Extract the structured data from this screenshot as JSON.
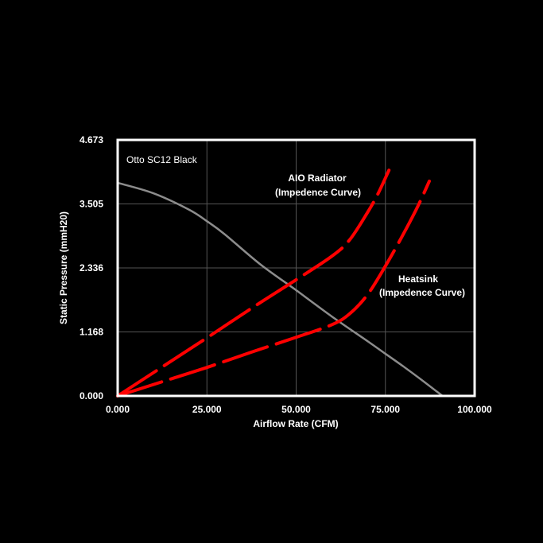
{
  "chart_data": {
    "type": "line",
    "title": "Otto SC12 Black",
    "xlabel": "Airflow Rate (CFM)",
    "ylabel": "Static Pressure (mmH20)",
    "xlim": [
      0,
      100
    ],
    "ylim": [
      0,
      4.673
    ],
    "x_ticks": [
      "0.000",
      "25.000",
      "50.000",
      "75.000",
      "100.000"
    ],
    "x_tick_values": [
      0,
      25,
      50,
      75,
      100
    ],
    "y_ticks": [
      "0.000",
      "1.168",
      "2.336",
      "3.505",
      "4.673"
    ],
    "y_tick_values": [
      0,
      1.168,
      2.336,
      3.505,
      4.673
    ],
    "grid": true,
    "series": [
      {
        "name": "Otto SC12 Black",
        "style": "solid",
        "color": "#8c8c8c",
        "x": [
          0,
          10,
          20,
          25,
          30,
          40,
          50,
          60,
          70,
          75,
          80,
          85,
          91
        ],
        "y": [
          3.89,
          3.7,
          3.4,
          3.19,
          2.95,
          2.4,
          1.93,
          1.45,
          1.0,
          0.77,
          0.54,
          0.3,
          0
        ]
      },
      {
        "name": "AIO Radiator (Impedence Curve)",
        "style": "dashed",
        "color": "#ff0000",
        "label_lines": [
          "AIO Radiator",
          "(Impedence Curve)"
        ],
        "x": [
          0,
          12.5,
          25,
          37.5,
          50,
          60,
          65,
          70,
          73,
          76
        ],
        "y": [
          0,
          0.53,
          1.06,
          1.6,
          2.12,
          2.55,
          2.85,
          3.35,
          3.7,
          4.12
        ]
      },
      {
        "name": "Heatsink (Impedence Curve)",
        "style": "dashed",
        "color": "#ff0000",
        "label_lines": [
          "Heatsink",
          "(Impedence Curve)"
        ],
        "x": [
          0,
          12.5,
          25,
          37.5,
          50,
          60,
          65,
          70,
          75,
          80,
          84,
          87.3
        ],
        "y": [
          0,
          0.26,
          0.52,
          0.8,
          1.07,
          1.3,
          1.5,
          1.85,
          2.37,
          2.95,
          3.45,
          3.92
        ]
      }
    ],
    "annotations": [
      {
        "text": "Otto SC12 Black",
        "position": "top-left"
      }
    ]
  }
}
